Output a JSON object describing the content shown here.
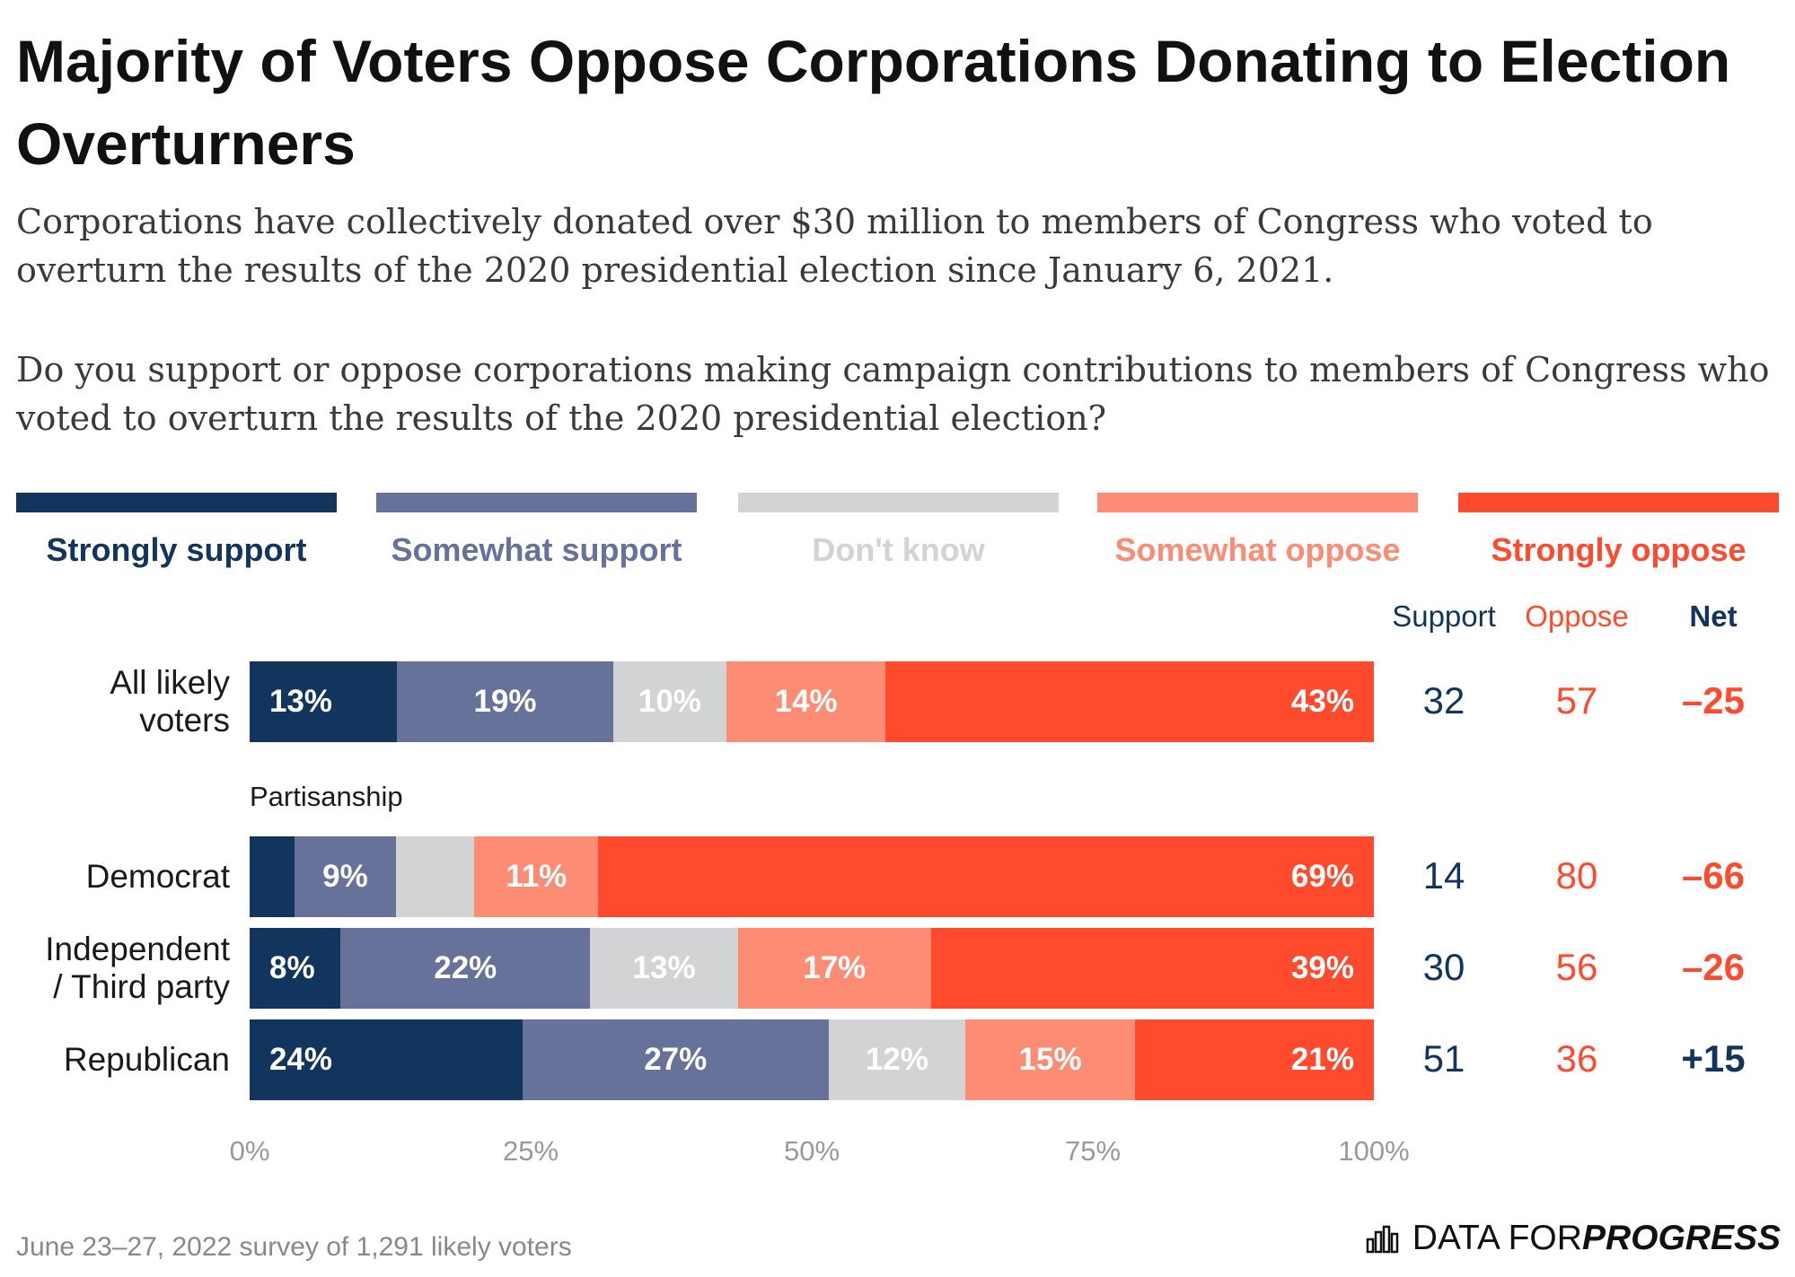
{
  "title": "Majority of Voters Oppose Corporations Donating to Election Overturners",
  "subtitle": "Corporations have collectively donated over $30 million to members of Congress who voted to overturn the results of the 2020 presidential election since January 6, 2021.",
  "question": "Do you support or oppose corporations making campaign contributions to members of Congress who voted to overturn the results of the 2020 presidential election?",
  "colors": {
    "strongly_support": "#12355e",
    "somewhat_support": "#66729a",
    "dont_know": "#d2d3d5",
    "somewhat_oppose": "#fc8c74",
    "strongly_oppose": "#ff4a2e"
  },
  "legend": [
    {
      "key": "strongly_support",
      "label": "Strongly support",
      "color": "#12355e"
    },
    {
      "key": "somewhat_support",
      "label": "Somewhat support",
      "color": "#66729a"
    },
    {
      "key": "dont_know",
      "label": "Don't know",
      "color": "#d2d3d5"
    },
    {
      "key": "somewhat_oppose",
      "label": "Somewhat oppose",
      "color": "#fc8c74"
    },
    {
      "key": "strongly_oppose",
      "label": "Strongly oppose",
      "color": "#ff4a2e"
    }
  ],
  "columns": {
    "support": "Support",
    "oppose": "Oppose",
    "net": "Net"
  },
  "section_label": "Partisanship",
  "chart_data": {
    "type": "bar",
    "orientation": "horizontal-stacked",
    "categories": [
      "All likely voters",
      "Democrat",
      "Independent / Third party",
      "Republican"
    ],
    "series": [
      {
        "name": "Strongly support",
        "values": [
          13,
          4,
          8,
          24
        ],
        "labels": [
          "13%",
          "",
          "8%",
          "24%"
        ]
      },
      {
        "name": "Somewhat support",
        "values": [
          19,
          9,
          22,
          27
        ],
        "labels": [
          "19%",
          "9%",
          "22%",
          "27%"
        ]
      },
      {
        "name": "Don't know",
        "values": [
          10,
          7,
          13,
          12
        ],
        "labels": [
          "10%",
          "",
          "13%",
          "12%"
        ]
      },
      {
        "name": "Somewhat oppose",
        "values": [
          14,
          11,
          17,
          15
        ],
        "labels": [
          "14%",
          "11%",
          "17%",
          "15%"
        ]
      },
      {
        "name": "Strongly oppose",
        "values": [
          43,
          69,
          39,
          21
        ],
        "labels": [
          "43%",
          "69%",
          "39%",
          "21%"
        ]
      }
    ],
    "support": [
      "32",
      "14",
      "30",
      "51"
    ],
    "oppose": [
      "57",
      "80",
      "56",
      "36"
    ],
    "net": [
      "–25",
      "–66",
      "–26",
      "+15"
    ],
    "xlim": [
      0,
      100
    ],
    "xticks": [
      "0%",
      "25%",
      "50%",
      "75%",
      "100%"
    ],
    "legend_position": "top"
  },
  "footnote": "June 23–27, 2022 survey of 1,291 likely voters",
  "brand": {
    "prefix": "DATA FOR ",
    "bold": "PROGRESS"
  }
}
